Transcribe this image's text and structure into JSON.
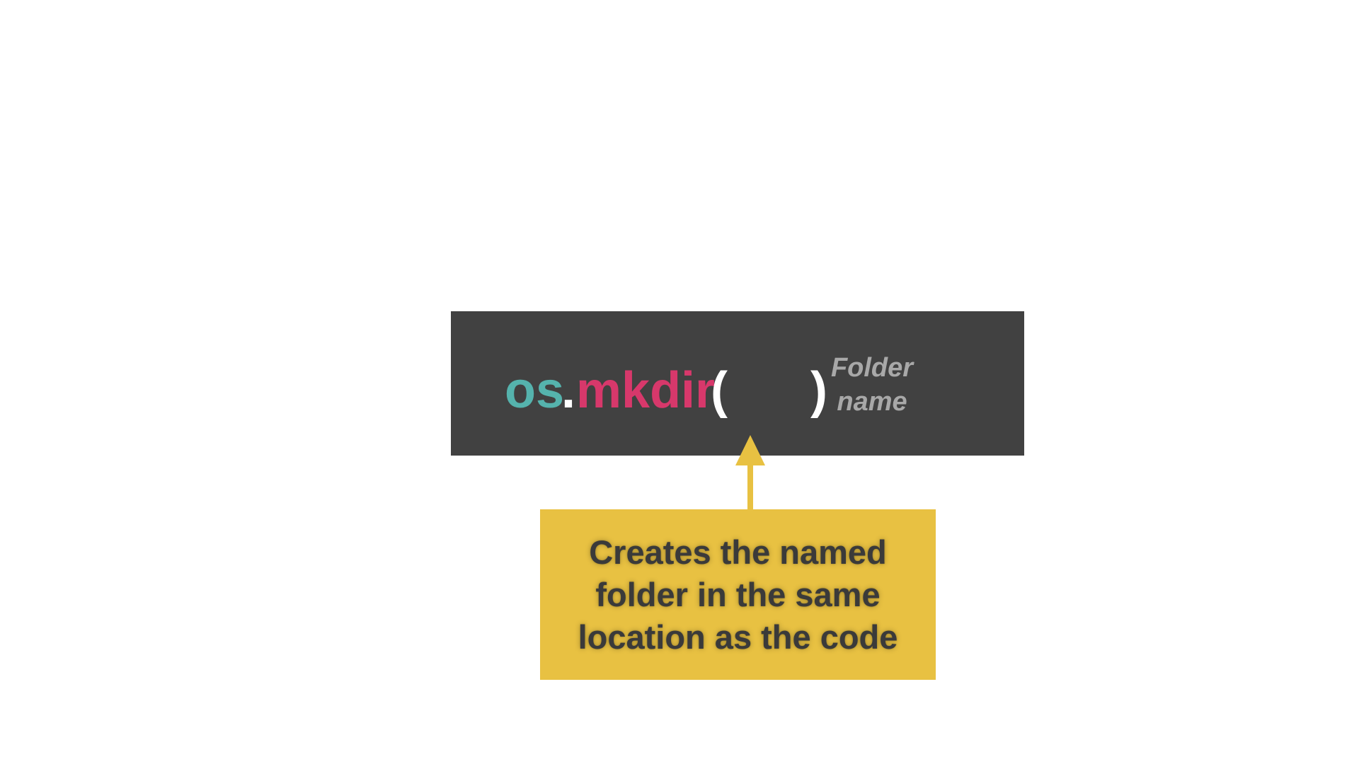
{
  "code": {
    "module": "os",
    "dot": ".",
    "function": "mkdir",
    "open_paren": "(",
    "close_paren": ")",
    "param_hint": "Folder\nname"
  },
  "callout": {
    "text": "Creates the named\nfolder in the same\nlocation as the code"
  },
  "colors": {
    "code_background": "#414141",
    "module": "#55b3ad",
    "function": "#d7386b",
    "punctuation": "#ffffff",
    "param_hint": "#a8a8a8",
    "callout_background": "#e8c142",
    "callout_text": "#3a3a3a",
    "arrow": "#e8c142"
  },
  "icons": {
    "arrow": "arrow-up-icon"
  }
}
